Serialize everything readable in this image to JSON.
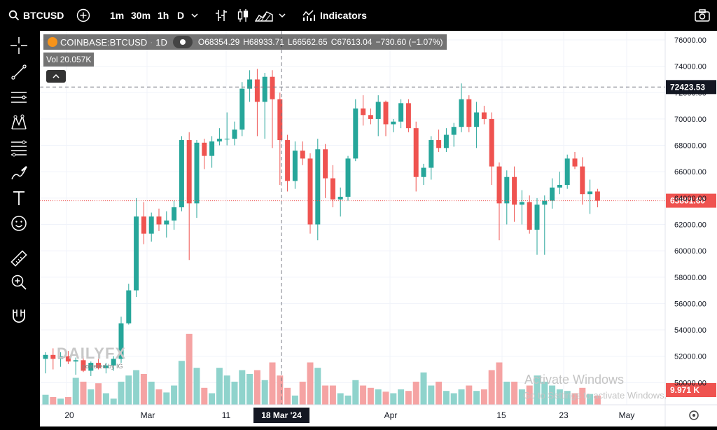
{
  "header": {
    "symbol": "BTCUSD",
    "intervals": [
      "1m",
      "30m",
      "1h",
      "D"
    ],
    "indicators_label": "Indicators"
  },
  "legend": {
    "exchange_symbol": "COINBASE:BTCUSD",
    "interval": "1D",
    "open": "O68354.29",
    "high": "H68933.71",
    "low": "L66562.65",
    "close": "C67613.04",
    "change": "−730.60 (−1.07%)",
    "vol_label": "Vol",
    "vol_value": "20.057K"
  },
  "price_axis": {
    "ticks": [
      "76000.00",
      "74000.00",
      "72000.00",
      "70000.00",
      "68000.00",
      "66000.00",
      "64000.00",
      "62000.00",
      "60000.00",
      "58000.00",
      "56000.00",
      "54000.00",
      "52000.00",
      "50000.00"
    ],
    "crosshair_price": "72423.53",
    "last_price": "63801.60",
    "volume_label": "9.971 K"
  },
  "time_axis": {
    "ticks": [
      "20",
      "Mar",
      "11",
      "Apr",
      "15",
      "23",
      "May"
    ],
    "crosshair_date": "18 Mar '24"
  },
  "watermark": {
    "logo_text": "DAILYFX",
    "powered_by": "powered by IG"
  },
  "os_overlay": {
    "title": "Activate Windows",
    "subtitle": "Go to Settings to activate Windows."
  },
  "colors": {
    "up": "#26a69a",
    "down": "#ef5350",
    "up_vol": "#8fd3cc",
    "down_vol": "#f5a3a3",
    "last_price_badge": "#ef5350"
  },
  "chart_data": {
    "type": "candlestick",
    "y_range": [
      49000,
      76500
    ],
    "candles": [
      {
        "o": 51800,
        "h": 52300,
        "l": 50700,
        "c": 52100,
        "v": 13
      },
      {
        "o": 52100,
        "h": 52600,
        "l": 51000,
        "c": 51800,
        "v": 10
      },
      {
        "o": 51800,
        "h": 52300,
        "l": 51200,
        "c": 52000,
        "v": 8
      },
      {
        "o": 52000,
        "h": 52400,
        "l": 51400,
        "c": 51600,
        "v": 10
      },
      {
        "o": 51600,
        "h": 51900,
        "l": 50600,
        "c": 51700,
        "v": 35
      },
      {
        "o": 51700,
        "h": 52000,
        "l": 50800,
        "c": 50900,
        "v": 30
      },
      {
        "o": 50900,
        "h": 51600,
        "l": 50500,
        "c": 51500,
        "v": 20
      },
      {
        "o": 51500,
        "h": 51800,
        "l": 51000,
        "c": 51100,
        "v": 28
      },
      {
        "o": 51100,
        "h": 51500,
        "l": 50700,
        "c": 51300,
        "v": 15
      },
      {
        "o": 51300,
        "h": 52000,
        "l": 50900,
        "c": 51800,
        "v": 8
      },
      {
        "o": 51800,
        "h": 55000,
        "l": 51500,
        "c": 54500,
        "v": 30
      },
      {
        "o": 54500,
        "h": 57500,
        "l": 54400,
        "c": 57000,
        "v": 38
      },
      {
        "o": 57000,
        "h": 64000,
        "l": 56500,
        "c": 62600,
        "v": 45
      },
      {
        "o": 62600,
        "h": 63700,
        "l": 60500,
        "c": 61300,
        "v": 40
      },
      {
        "o": 61300,
        "h": 62900,
        "l": 60700,
        "c": 62600,
        "v": 30
      },
      {
        "o": 62600,
        "h": 63200,
        "l": 61500,
        "c": 62000,
        "v": 20
      },
      {
        "o": 62000,
        "h": 63000,
        "l": 61000,
        "c": 62300,
        "v": 16
      },
      {
        "o": 62300,
        "h": 63800,
        "l": 61600,
        "c": 63300,
        "v": 25
      },
      {
        "o": 63300,
        "h": 68700,
        "l": 63000,
        "c": 68400,
        "v": 57
      },
      {
        "o": 68400,
        "h": 69000,
        "l": 59300,
        "c": 63600,
        "v": 92
      },
      {
        "o": 63600,
        "h": 68400,
        "l": 62500,
        "c": 68200,
        "v": 48
      },
      {
        "o": 68200,
        "h": 68500,
        "l": 66200,
        "c": 67200,
        "v": 22
      },
      {
        "o": 67200,
        "h": 68700,
        "l": 66300,
        "c": 68300,
        "v": 15
      },
      {
        "o": 68300,
        "h": 69300,
        "l": 68000,
        "c": 68500,
        "v": 48
      },
      {
        "o": 68500,
        "h": 70500,
        "l": 68000,
        "c": 68500,
        "v": 38
      },
      {
        "o": 68500,
        "h": 69800,
        "l": 68000,
        "c": 69200,
        "v": 30
      },
      {
        "o": 69200,
        "h": 72800,
        "l": 68700,
        "c": 72300,
        "v": 45
      },
      {
        "o": 72300,
        "h": 73700,
        "l": 71300,
        "c": 73000,
        "v": 40
      },
      {
        "o": 73000,
        "h": 73800,
        "l": 68700,
        "c": 71300,
        "v": 45
      },
      {
        "o": 71300,
        "h": 73500,
        "l": 68500,
        "c": 73200,
        "v": 32
      },
      {
        "o": 73200,
        "h": 73700,
        "l": 67800,
        "c": 71500,
        "v": 55
      },
      {
        "o": 71500,
        "h": 72000,
        "l": 65000,
        "c": 68400,
        "v": 38
      },
      {
        "o": 68400,
        "h": 68800,
        "l": 64500,
        "c": 65300,
        "v": 22
      },
      {
        "o": 65300,
        "h": 68300,
        "l": 64700,
        "c": 67600,
        "v": 12
      },
      {
        "o": 67600,
        "h": 68300,
        "l": 66500,
        "c": 67000,
        "v": 30
      },
      {
        "o": 67000,
        "h": 67400,
        "l": 61300,
        "c": 62000,
        "v": 55
      },
      {
        "o": 62000,
        "h": 68500,
        "l": 60800,
        "c": 67700,
        "v": 48
      },
      {
        "o": 67700,
        "h": 68100,
        "l": 64000,
        "c": 65500,
        "v": 25
      },
      {
        "o": 65500,
        "h": 66500,
        "l": 63300,
        "c": 63900,
        "v": 25
      },
      {
        "o": 63900,
        "h": 64800,
        "l": 62600,
        "c": 64100,
        "v": 15
      },
      {
        "o": 64100,
        "h": 67200,
        "l": 63800,
        "c": 67000,
        "v": 12
      },
      {
        "o": 67000,
        "h": 71500,
        "l": 66800,
        "c": 70800,
        "v": 32
      },
      {
        "o": 70800,
        "h": 71800,
        "l": 69500,
        "c": 70300,
        "v": 25
      },
      {
        "o": 70300,
        "h": 70800,
        "l": 69600,
        "c": 70000,
        "v": 22
      },
      {
        "o": 70000,
        "h": 71800,
        "l": 68700,
        "c": 71300,
        "v": 20
      },
      {
        "o": 71300,
        "h": 71400,
        "l": 68700,
        "c": 69600,
        "v": 17
      },
      {
        "o": 69600,
        "h": 70000,
        "l": 69000,
        "c": 69800,
        "v": 15
      },
      {
        "o": 69800,
        "h": 71500,
        "l": 69300,
        "c": 71200,
        "v": 20
      },
      {
        "o": 71200,
        "h": 71500,
        "l": 69000,
        "c": 69300,
        "v": 18
      },
      {
        "o": 69300,
        "h": 69800,
        "l": 64500,
        "c": 65600,
        "v": 30
      },
      {
        "o": 65600,
        "h": 66600,
        "l": 65000,
        "c": 66300,
        "v": 42
      },
      {
        "o": 66300,
        "h": 68700,
        "l": 65400,
        "c": 68400,
        "v": 25
      },
      {
        "o": 68400,
        "h": 69200,
        "l": 67500,
        "c": 67800,
        "v": 30
      },
      {
        "o": 67800,
        "h": 69300,
        "l": 67500,
        "c": 68800,
        "v": 18
      },
      {
        "o": 68800,
        "h": 69700,
        "l": 67900,
        "c": 69400,
        "v": 15
      },
      {
        "o": 69400,
        "h": 72700,
        "l": 69000,
        "c": 71500,
        "v": 20
      },
      {
        "o": 71500,
        "h": 71800,
        "l": 69000,
        "c": 69400,
        "v": 25
      },
      {
        "o": 69400,
        "h": 71300,
        "l": 67800,
        "c": 70500,
        "v": 18
      },
      {
        "o": 70500,
        "h": 71000,
        "l": 69600,
        "c": 70000,
        "v": 20
      },
      {
        "o": 70000,
        "h": 70500,
        "l": 65000,
        "c": 66400,
        "v": 45
      },
      {
        "o": 66400,
        "h": 66700,
        "l": 60800,
        "c": 63600,
        "v": 55
      },
      {
        "o": 63600,
        "h": 66100,
        "l": 62000,
        "c": 65600,
        "v": 30
      },
      {
        "o": 65600,
        "h": 66400,
        "l": 62200,
        "c": 63500,
        "v": 30
      },
      {
        "o": 63500,
        "h": 64600,
        "l": 62000,
        "c": 63700,
        "v": 20
      },
      {
        "o": 63700,
        "h": 64200,
        "l": 61300,
        "c": 61600,
        "v": 25
      },
      {
        "o": 61600,
        "h": 64000,
        "l": 59700,
        "c": 63500,
        "v": 38
      },
      {
        "o": 63500,
        "h": 64200,
        "l": 59700,
        "c": 63800,
        "v": 30
      },
      {
        "o": 63800,
        "h": 65500,
        "l": 63200,
        "c": 64800,
        "v": 25
      },
      {
        "o": 64800,
        "h": 66000,
        "l": 64300,
        "c": 65000,
        "v": 20
      },
      {
        "o": 65000,
        "h": 67300,
        "l": 64700,
        "c": 67000,
        "v": 18
      },
      {
        "o": 67000,
        "h": 67500,
        "l": 66200,
        "c": 66400,
        "v": 15
      },
      {
        "o": 66400,
        "h": 67100,
        "l": 63500,
        "c": 64300,
        "v": 22
      },
      {
        "o": 64300,
        "h": 65400,
        "l": 62800,
        "c": 64500,
        "v": 14
      },
      {
        "o": 64500,
        "h": 64700,
        "l": 63300,
        "c": 63800,
        "v": 12
      }
    ]
  }
}
